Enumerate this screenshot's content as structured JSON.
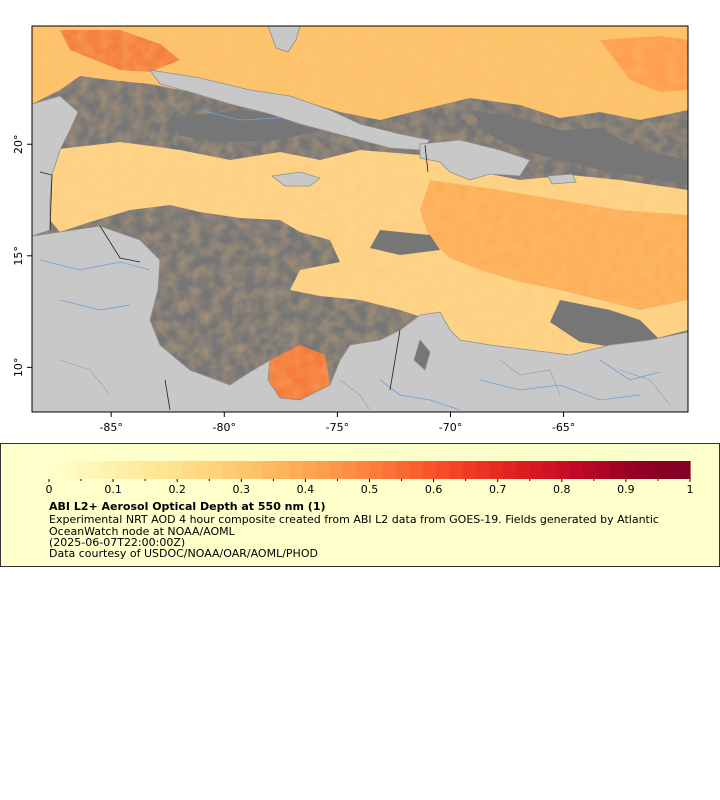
{
  "map": {
    "lon_range": [
      -88.5,
      -59.5
    ],
    "lat_range": [
      8,
      25.3
    ],
    "x_ticks": [
      {
        "lon": -85,
        "label": "-85°"
      },
      {
        "lon": -80,
        "label": "-80°"
      },
      {
        "lon": -75,
        "label": "-75°"
      },
      {
        "lon": -70,
        "label": "-70°"
      },
      {
        "lon": -65,
        "label": "-65°"
      }
    ],
    "y_ticks": [
      {
        "lat": 10,
        "label": "10°"
      },
      {
        "lat": 15,
        "label": "15°"
      },
      {
        "lat": 20,
        "label": "20°"
      }
    ],
    "colors": {
      "no_data": "#767676",
      "land": "#c8c8c8",
      "coast": "#8e8e8e",
      "rivers": "#6fa0d8",
      "borders": "#222222"
    }
  },
  "legend": {
    "title": "ABI L2+ Aerosol Optical Depth at 550 nm (1)",
    "description": "Experimental NRT AOD 4 hour composite created from ABI L2 data from GOES-19. Fields generated by Atlantic OceanWatch node at NOAA/AOML",
    "timestamp": "(2025-06-07T22:00:00Z)",
    "credit": "Data courtesy of USDOC/NOAA/OAR/AOML/PHOD",
    "scale_min": 0,
    "scale_max": 1,
    "tick_labels": [
      "0",
      "0.1",
      "0.2",
      "0.3",
      "0.4",
      "0.5",
      "0.6",
      "0.7",
      "0.8",
      "0.9",
      "1"
    ],
    "colors": [
      "#ffffcc",
      "#fff2ae",
      "#ffe38f",
      "#fed076",
      "#feb45a",
      "#fd9447",
      "#fc6c34",
      "#f34225",
      "#e0201f",
      "#c10a26",
      "#970025",
      "#800026"
    ]
  }
}
